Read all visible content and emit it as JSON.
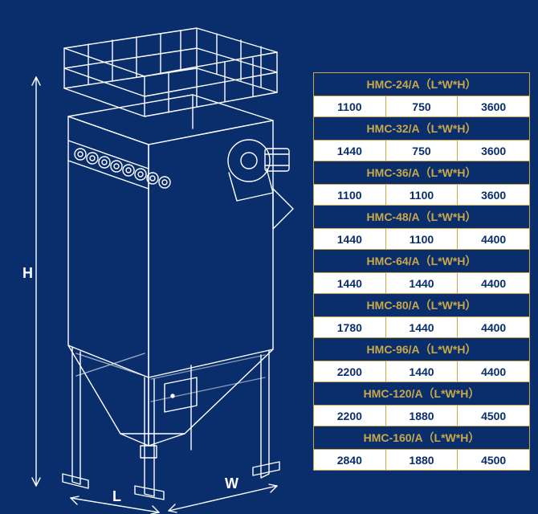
{
  "colors": {
    "background": "#0a2e6b",
    "line": "#ffffff",
    "table_border": "#c9a84a",
    "header_text": "#c9a84a",
    "header_bg": "#0a2e6b",
    "cell_bg": "#ffffff",
    "cell_text": "#0a2e6b"
  },
  "diagram": {
    "type": "technical-drawing",
    "object": "dust-collector",
    "dim_labels": {
      "H": "H",
      "L": "L",
      "W": "W"
    },
    "stroke_width": 1.4
  },
  "table": {
    "type": "table",
    "header_suffix": "（L*W*H）",
    "rows": [
      {
        "model": "HMC-24/A",
        "L": "1100",
        "W": "750",
        "H": "3600"
      },
      {
        "model": "HMC-32/A",
        "L": "1440",
        "W": "750",
        "H": "3600"
      },
      {
        "model": "HMC-36/A",
        "L": "1100",
        "W": "1100",
        "H": "3600"
      },
      {
        "model": "HMC-48/A",
        "L": "1440",
        "W": "1100",
        "H": "4400"
      },
      {
        "model": "HMC-64/A",
        "L": "1440",
        "W": "1440",
        "H": "4400"
      },
      {
        "model": "HMC-80/A",
        "L": "1780",
        "W": "1440",
        "H": "4400"
      },
      {
        "model": "HMC-96/A",
        "L": "2200",
        "W": "1440",
        "H": "4400"
      },
      {
        "model": "HMC-120/A",
        "L": "2200",
        "W": "1880",
        "H": "4500"
      },
      {
        "model": "HMC-160/A",
        "L": "2840",
        "W": "1880",
        "H": "4500"
      }
    ]
  }
}
